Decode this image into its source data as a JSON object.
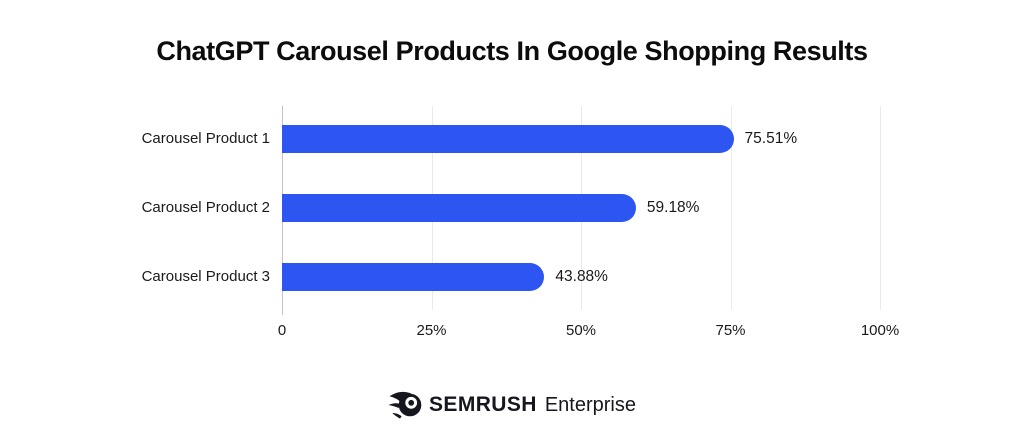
{
  "title": "ChatGPT Carousel Products In Google Shopping Results",
  "chart_data": {
    "type": "bar",
    "orientation": "horizontal",
    "title": "ChatGPT Carousel Products In Google Shopping Results",
    "categories": [
      "Carousel Product 1",
      "Carousel Product 2",
      "Carousel Product 3"
    ],
    "values": [
      75.51,
      59.18,
      43.88
    ],
    "value_labels": [
      "75.51%",
      "59.18%",
      "43.88%"
    ],
    "x_ticks": [
      {
        "label": "0",
        "value": 0
      },
      {
        "label": "25%",
        "value": 25
      },
      {
        "label": "50%",
        "value": 50
      },
      {
        "label": "75%",
        "value": 75
      },
      {
        "label": "100%",
        "value": 100
      }
    ],
    "xlim": [
      0,
      100
    ],
    "grid": true,
    "legend": false,
    "bar_color": "#2D55F2",
    "gridline_color": "#EAEAEA",
    "axis_line_color": "#C4C4C4",
    "text_color": "#1A1A1A"
  },
  "footer": {
    "brand": "SEMRUSH",
    "suffix": "Enterprise",
    "logo_icon": "semrush-comet-ball-icon",
    "logo_color": "#16161F"
  }
}
